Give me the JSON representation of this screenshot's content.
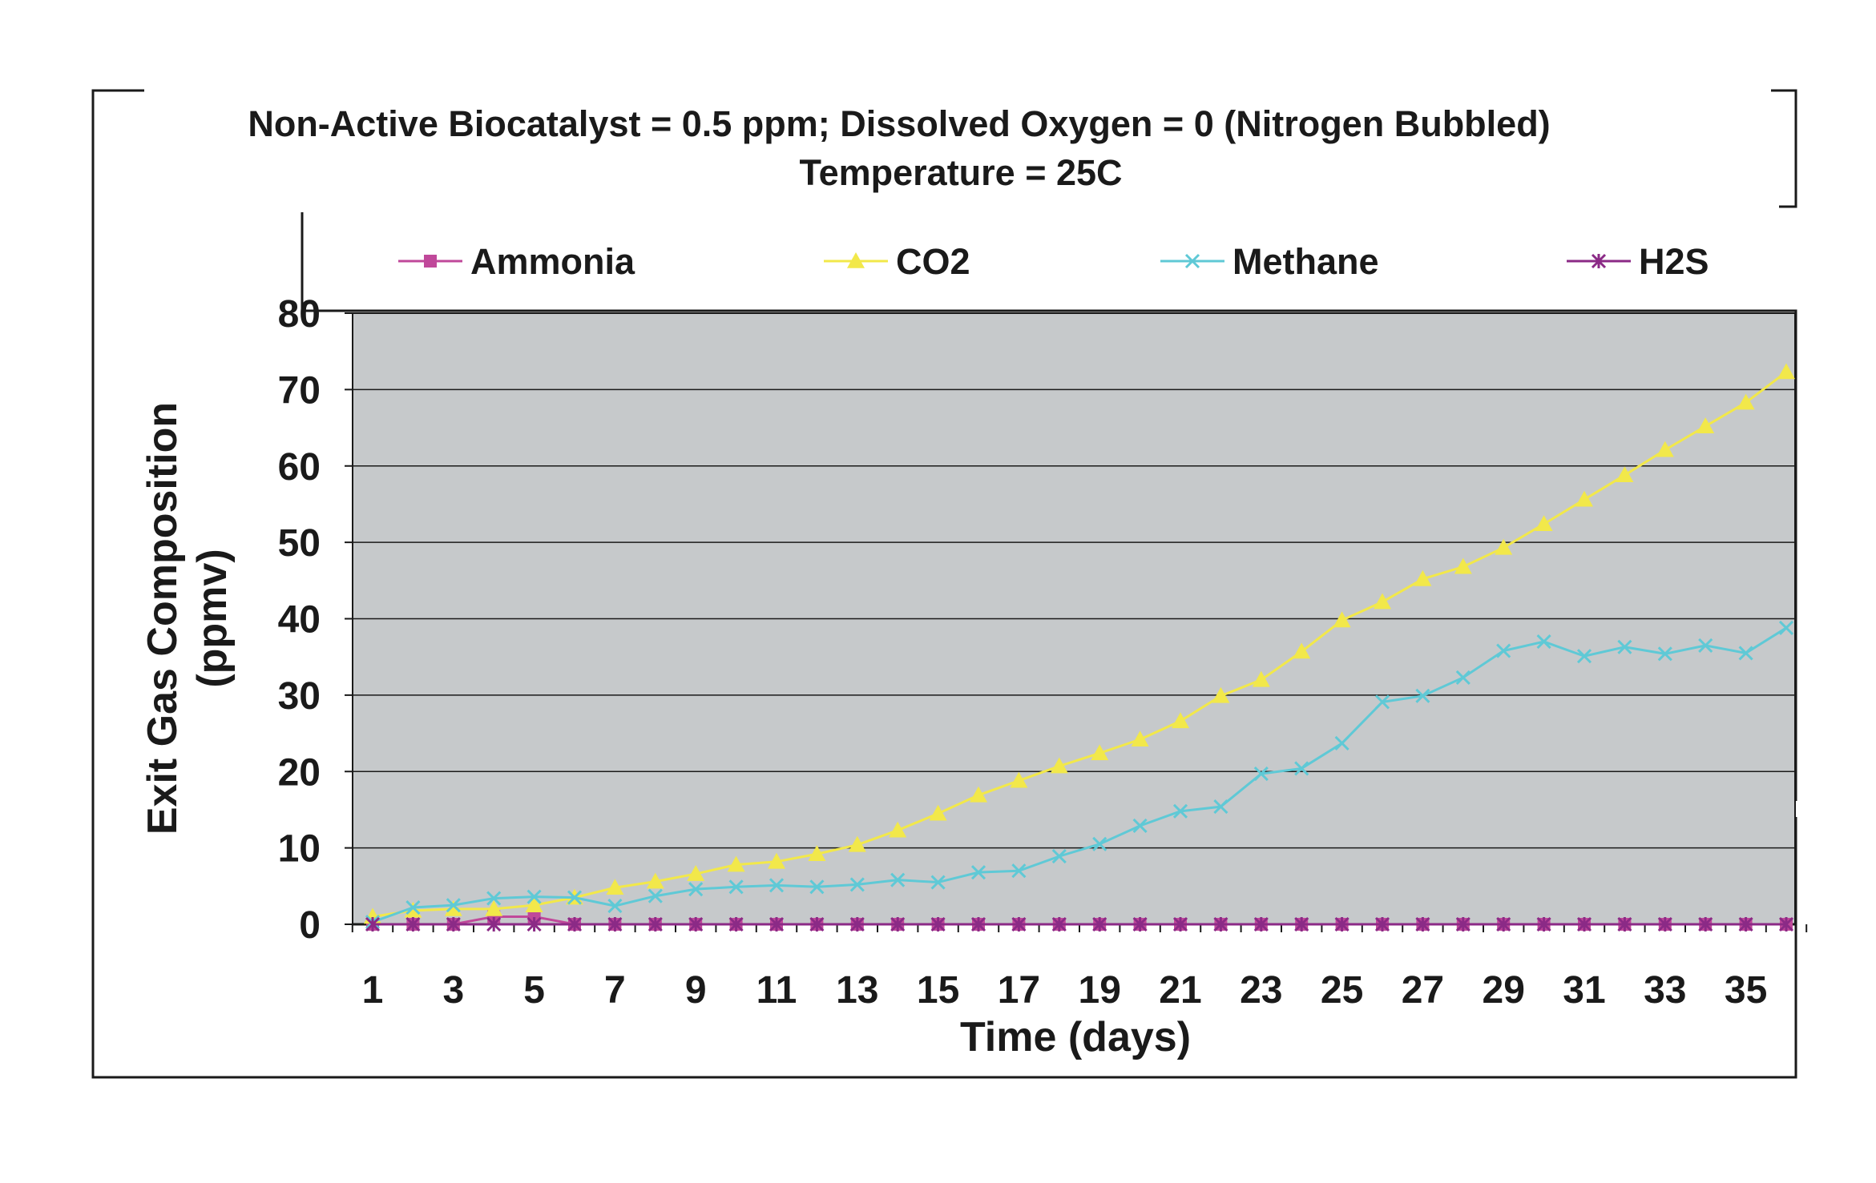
{
  "chart_data": {
    "type": "line",
    "title_line1": "Non-Active Biocatalyst = 0.5 ppm; Dissolved Oxygen = 0 (Nitrogen Bubbled)",
    "title_line2": "Temperature = 25C",
    "xlabel": "Time (days)",
    "ylabel_line1": "Exit Gas Composition",
    "ylabel_line2": "(ppmv)",
    "x": [
      1,
      2,
      3,
      4,
      5,
      6,
      7,
      8,
      9,
      10,
      11,
      12,
      13,
      14,
      15,
      16,
      17,
      18,
      19,
      20,
      21,
      22,
      23,
      24,
      25,
      26,
      27,
      28,
      29,
      30,
      31,
      32,
      33,
      34,
      35,
      36
    ],
    "x_tick_labels": [
      "1",
      "3",
      "5",
      "7",
      "9",
      "11",
      "13",
      "15",
      "17",
      "19",
      "21",
      "23",
      "25",
      "27",
      "29",
      "31",
      "33",
      "35"
    ],
    "ylim": [
      0,
      80
    ],
    "y_ticks": [
      0,
      10,
      20,
      30,
      40,
      50,
      60,
      70,
      80
    ],
    "grid": true,
    "legend_position": "top",
    "plot_background": "#c6c9cb",
    "series": [
      {
        "name": "Ammonia",
        "color": "#c0489a",
        "marker": "square",
        "values": [
          0,
          0,
          0,
          1,
          1,
          0,
          0,
          0,
          0,
          0,
          0,
          0,
          0,
          0,
          0,
          0,
          0,
          0,
          0,
          0,
          0,
          0,
          0,
          0,
          0,
          0,
          0,
          0,
          0,
          0,
          0,
          0,
          0,
          0,
          0,
          0
        ]
      },
      {
        "name": "CO2",
        "color": "#f2e84a",
        "marker": "triangle",
        "values": [
          1,
          1.8,
          2,
          2,
          2.5,
          3.5,
          4.8,
          5.6,
          6.6,
          7.8,
          8.2,
          9.2,
          10.4,
          12.3,
          14.5,
          16.9,
          18.8,
          20.7,
          22.4,
          24.2,
          26.6,
          29.9,
          32,
          35.7,
          39.8,
          42.2,
          45.2,
          46.8,
          49.3,
          52.4,
          55.6,
          58.8,
          62.1,
          65.2,
          68.3,
          72.3
        ]
      },
      {
        "name": "Methane",
        "color": "#5fc9d6",
        "marker": "x",
        "values": [
          0.3,
          2.2,
          2.5,
          3.4,
          3.6,
          3.5,
          2.4,
          3.7,
          4.6,
          4.9,
          5.1,
          4.9,
          5.2,
          5.8,
          5.5,
          6.8,
          7,
          8.9,
          10.5,
          12.9,
          14.8,
          15.4,
          19.7,
          20.4,
          23.7,
          29.1,
          29.9,
          32.3,
          35.8,
          37,
          35.1,
          36.3,
          35.4,
          36.5,
          35.5,
          38.8
        ]
      },
      {
        "name": "H2S",
        "color": "#8b2a86",
        "marker": "asterisk",
        "values": [
          0,
          0,
          0,
          0,
          0,
          0,
          0,
          0,
          0,
          0,
          0,
          0,
          0,
          0,
          0,
          0,
          0,
          0,
          0,
          0,
          0,
          0,
          0,
          0,
          0,
          0,
          0,
          0,
          0,
          0,
          0,
          0,
          0,
          0,
          0,
          0
        ]
      }
    ]
  }
}
